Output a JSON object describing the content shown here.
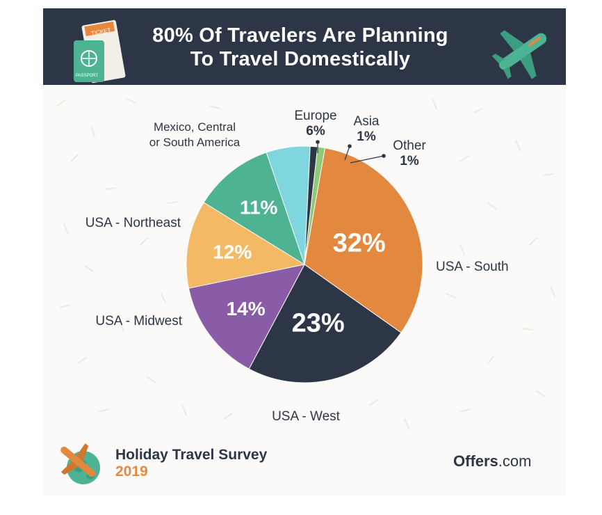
{
  "header": {
    "title_line1": "80% Of Travelers Are Planning",
    "title_line2": "To Travel Domestically",
    "ticket_text": "TICKET",
    "passport_text": "PASSPORT"
  },
  "chart_data": {
    "type": "pie",
    "title": "80% Of Travelers Are Planning To Travel Domestically",
    "slices": [
      {
        "label": "USA - South",
        "value": 32,
        "display": "32%",
        "color": "#e3893f"
      },
      {
        "label": "USA - West",
        "value": 23,
        "display": "23%",
        "color": "#2c3646"
      },
      {
        "label": "USA - Midwest",
        "value": 14,
        "display": "14%",
        "color": "#8a5ca8"
      },
      {
        "label": "USA - Northeast",
        "value": 12,
        "display": "12%",
        "color": "#f3b964"
      },
      {
        "label": "Mexico, Central or South America",
        "value": 11,
        "display": "11%",
        "color": "#4db393"
      },
      {
        "label": "Europe",
        "value": 6,
        "display": "6%",
        "color": "#7fd6df"
      },
      {
        "label": "Asia",
        "value": 1,
        "display": "1%",
        "color": "#2c3646"
      },
      {
        "label": "Other",
        "value": 1,
        "display": "1%",
        "color": "#8fc97a"
      }
    ],
    "legend": "labels placed beside slices"
  },
  "footer": {
    "survey_title": "Holiday Travel Survey",
    "survey_year": "2019",
    "brand_name": "Offers",
    "brand_tld": ".com"
  },
  "colors": {
    "header_bg": "#2c3646",
    "accent_orange": "#e3893f",
    "accent_teal": "#4db393"
  }
}
